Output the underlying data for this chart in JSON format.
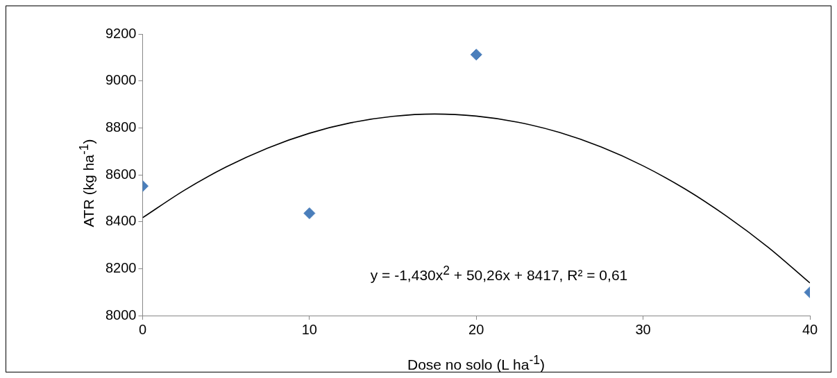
{
  "chart_data": {
    "type": "scatter",
    "xlabel": "Dose no solo (L ha$^{-1}$)",
    "ylabel": "ATR (kg ha$^{-1}$)",
    "xlim": [
      0,
      40
    ],
    "xticks": [
      0,
      10,
      20,
      30,
      40
    ],
    "ylim": [
      8000,
      9200
    ],
    "yticks": [
      8000,
      8200,
      8400,
      8600,
      8800,
      9000,
      9200
    ],
    "grid": false,
    "legend": false,
    "annotations": [
      "y = -1,430x$^{2}$ + 50,26x + 8417, R² = 0,61"
    ],
    "series": [
      {
        "color": "#4a7ebb",
        "marker": "diamond",
        "x": [
          0,
          10,
          20,
          40
        ],
        "values": [
          8552,
          8436,
          9112,
          8099
        ]
      },
      {
        "type": "line",
        "color": "#000000",
        "marker": "none",
        "x": [
          0,
          2.5,
          5,
          7.5,
          10,
          12.5,
          15,
          17.5,
          20,
          22.5,
          25,
          27.5,
          30,
          32.5,
          35,
          37.5,
          40
        ],
        "values": [
          8417,
          8534,
          8633,
          8714,
          8777,
          8822,
          8849,
          8859,
          8850,
          8824,
          8780,
          8718,
          8638,
          8540,
          8424,
          8291,
          8139
        ]
      }
    ]
  }
}
